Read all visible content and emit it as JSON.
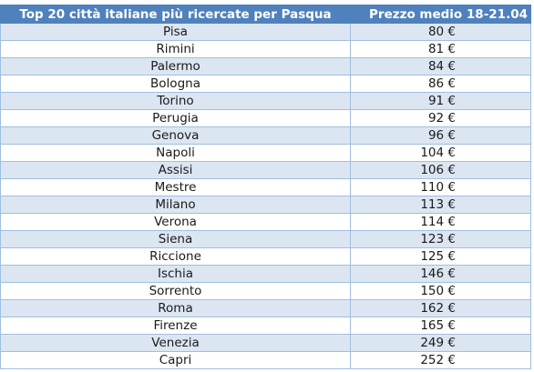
{
  "table": {
    "headers": [
      "Top 20 città italiane più ricercate per Pasqua",
      "Prezzo medio 18-21.04"
    ],
    "rows": [
      {
        "city": "Pisa",
        "price": "80 €"
      },
      {
        "city": "Rimini",
        "price": "81 €"
      },
      {
        "city": "Palermo",
        "price": "84 €"
      },
      {
        "city": "Bologna",
        "price": "86 €"
      },
      {
        "city": "Torino",
        "price": "91 €"
      },
      {
        "city": "Perugia",
        "price": "92 €"
      },
      {
        "city": "Genova",
        "price": "96 €"
      },
      {
        "city": "Napoli",
        "price": "104 €"
      },
      {
        "city": "Assisi",
        "price": "106 €"
      },
      {
        "city": "Mestre",
        "price": "110 €"
      },
      {
        "city": "Milano",
        "price": "113 €"
      },
      {
        "city": "Verona",
        "price": "114 €"
      },
      {
        "city": "Siena",
        "price": "123 €"
      },
      {
        "city": "Riccione",
        "price": "125 €"
      },
      {
        "city": "Ischia",
        "price": "146 €"
      },
      {
        "city": "Sorrento",
        "price": "150 €"
      },
      {
        "city": "Roma",
        "price": "162 €"
      },
      {
        "city": "Firenze",
        "price": "165 €"
      },
      {
        "city": "Venezia",
        "price": "249 €"
      },
      {
        "city": "Capri",
        "price": "252 €"
      }
    ]
  },
  "colors": {
    "header_bg": "#4f81bd",
    "row_alt_bg": "#dce6f2",
    "border": "#9fbfe0"
  }
}
